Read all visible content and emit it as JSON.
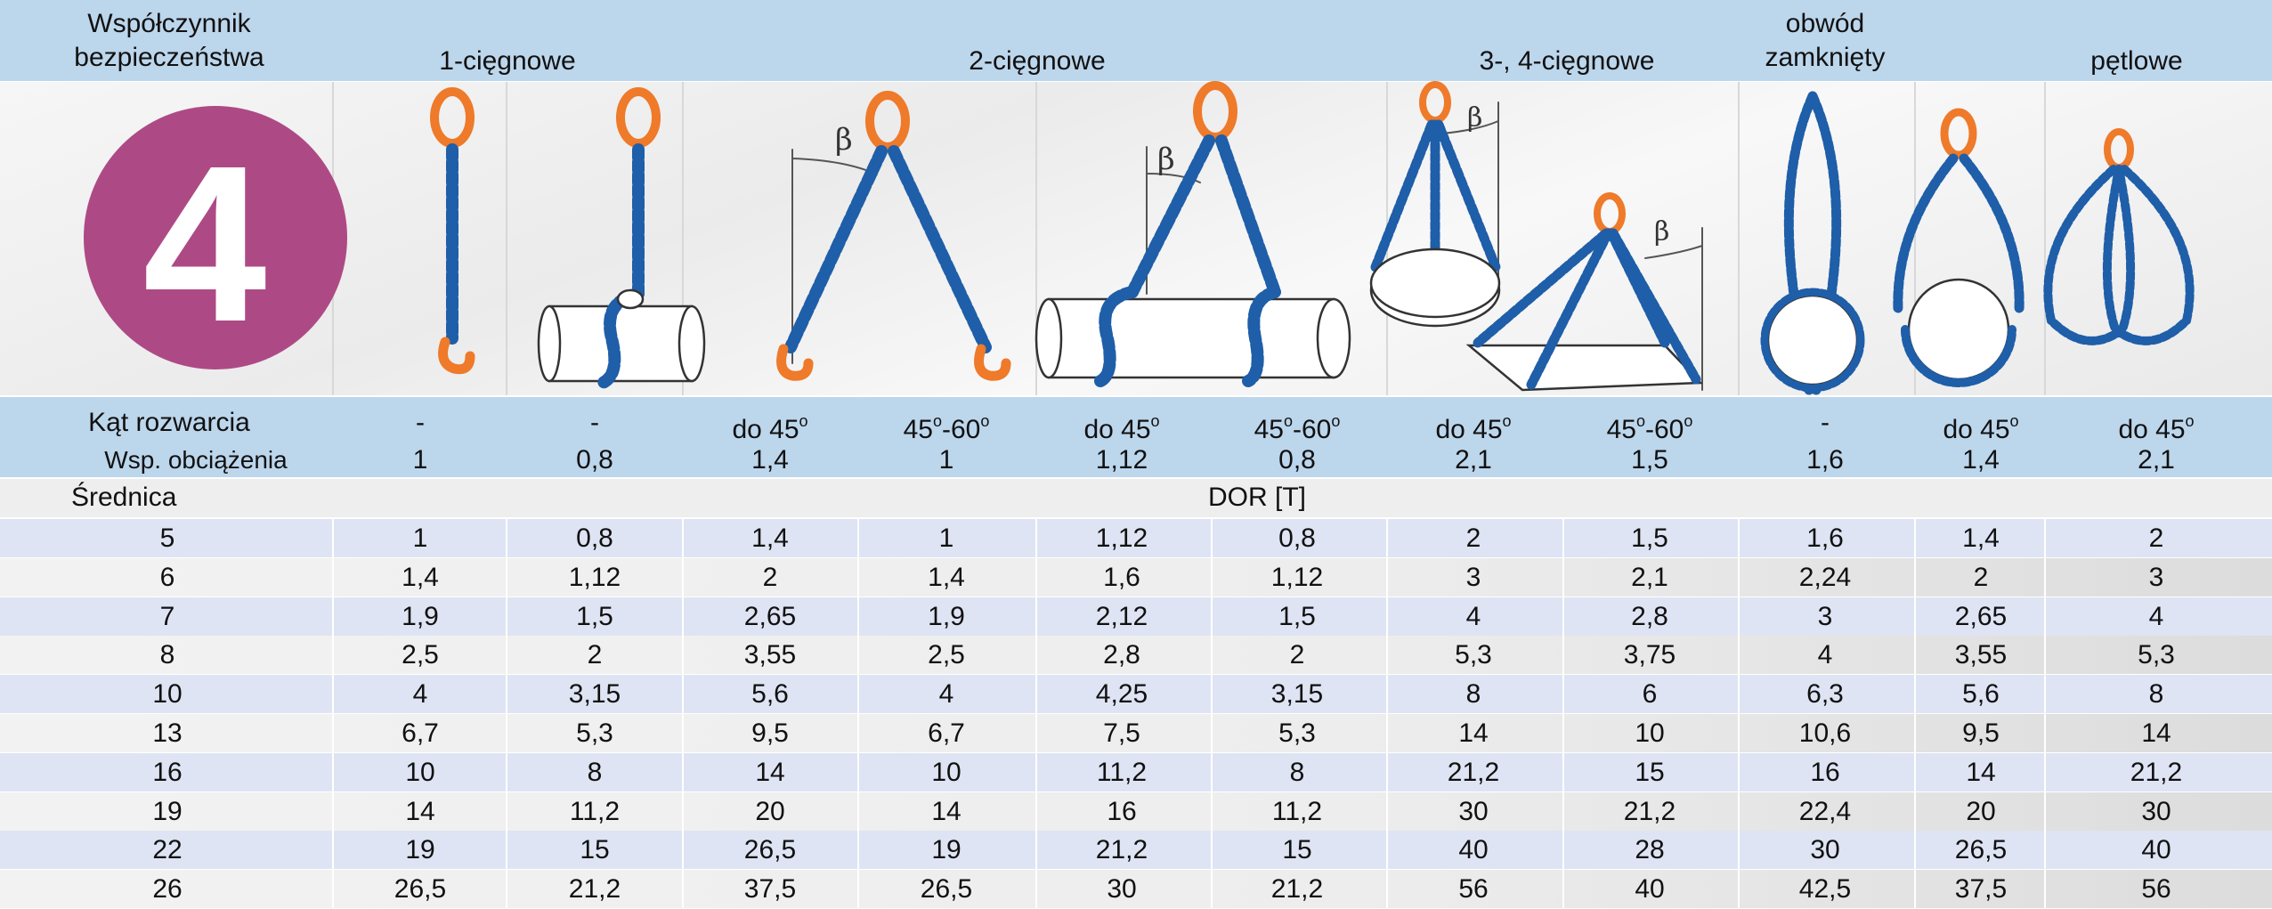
{
  "header": {
    "factor_label": "Współczynnik\nbezpieczeństwa",
    "group_1": "1-cięgnowe",
    "group_2": "2-cięgnowe",
    "group_3": "3-, 4-cięgnowe",
    "group_4": "obwód\nzamknięty",
    "group_5": "pętlowe"
  },
  "badge": {
    "value": "4",
    "color": "#ad4a85"
  },
  "illustration": {
    "angle_symbol": "β",
    "chain_color": "#1f5ea8",
    "hook_color": "#ee7a2a"
  },
  "params": {
    "angle_label": "Kąt rozwarcia",
    "load_label": "Wsp. obciążenia",
    "angles": [
      "-",
      "-",
      "do 45",
      "45-60",
      "do 45",
      "45-60",
      "do 45",
      "45-60",
      "-",
      "do 45",
      "do 45"
    ],
    "load_factors": [
      "1",
      "0,8",
      "1,4",
      "1",
      "1,12",
      "0,8",
      "2,1",
      "1,5",
      "1,6",
      "1,4",
      "2,1"
    ]
  },
  "table": {
    "diameter_label": "Średnica",
    "dor_label": "DOR [T]",
    "rows": [
      {
        "d": "5",
        "v": [
          "1",
          "0,8",
          "1,4",
          "1",
          "1,12",
          "0,8",
          "2",
          "1,5",
          "1,6",
          "1,4",
          "2"
        ]
      },
      {
        "d": "6",
        "v": [
          "1,4",
          "1,12",
          "2",
          "1,4",
          "1,6",
          "1,12",
          "3",
          "2,1",
          "2,24",
          "2",
          "3"
        ]
      },
      {
        "d": "7",
        "v": [
          "1,9",
          "1,5",
          "2,65",
          "1,9",
          "2,12",
          "1,5",
          "4",
          "2,8",
          "3",
          "2,65",
          "4"
        ]
      },
      {
        "d": "8",
        "v": [
          "2,5",
          "2",
          "3,55",
          "2,5",
          "2,8",
          "2",
          "5,3",
          "3,75",
          "4",
          "3,55",
          "5,3"
        ]
      },
      {
        "d": "10",
        "v": [
          "4",
          "3,15",
          "5,6",
          "4",
          "4,25",
          "3,15",
          "8",
          "6",
          "6,3",
          "5,6",
          "8"
        ]
      },
      {
        "d": "13",
        "v": [
          "6,7",
          "5,3",
          "9,5",
          "6,7",
          "7,5",
          "5,3",
          "14",
          "10",
          "10,6",
          "9,5",
          "14"
        ]
      },
      {
        "d": "16",
        "v": [
          "10",
          "8",
          "14",
          "10",
          "11,2",
          "8",
          "21,2",
          "15",
          "16",
          "14",
          "21,2"
        ]
      },
      {
        "d": "19",
        "v": [
          "14",
          "11,2",
          "20",
          "14",
          "16",
          "11,2",
          "30",
          "21,2",
          "22,4",
          "20",
          "30"
        ]
      },
      {
        "d": "22",
        "v": [
          "19",
          "15",
          "26,5",
          "19",
          "21,2",
          "15",
          "40",
          "28",
          "30",
          "26,5",
          "40"
        ]
      },
      {
        "d": "26",
        "v": [
          "26,5",
          "21,2",
          "37,5",
          "26,5",
          "30",
          "21,2",
          "56",
          "40",
          "42,5",
          "37,5",
          "56"
        ]
      }
    ]
  }
}
